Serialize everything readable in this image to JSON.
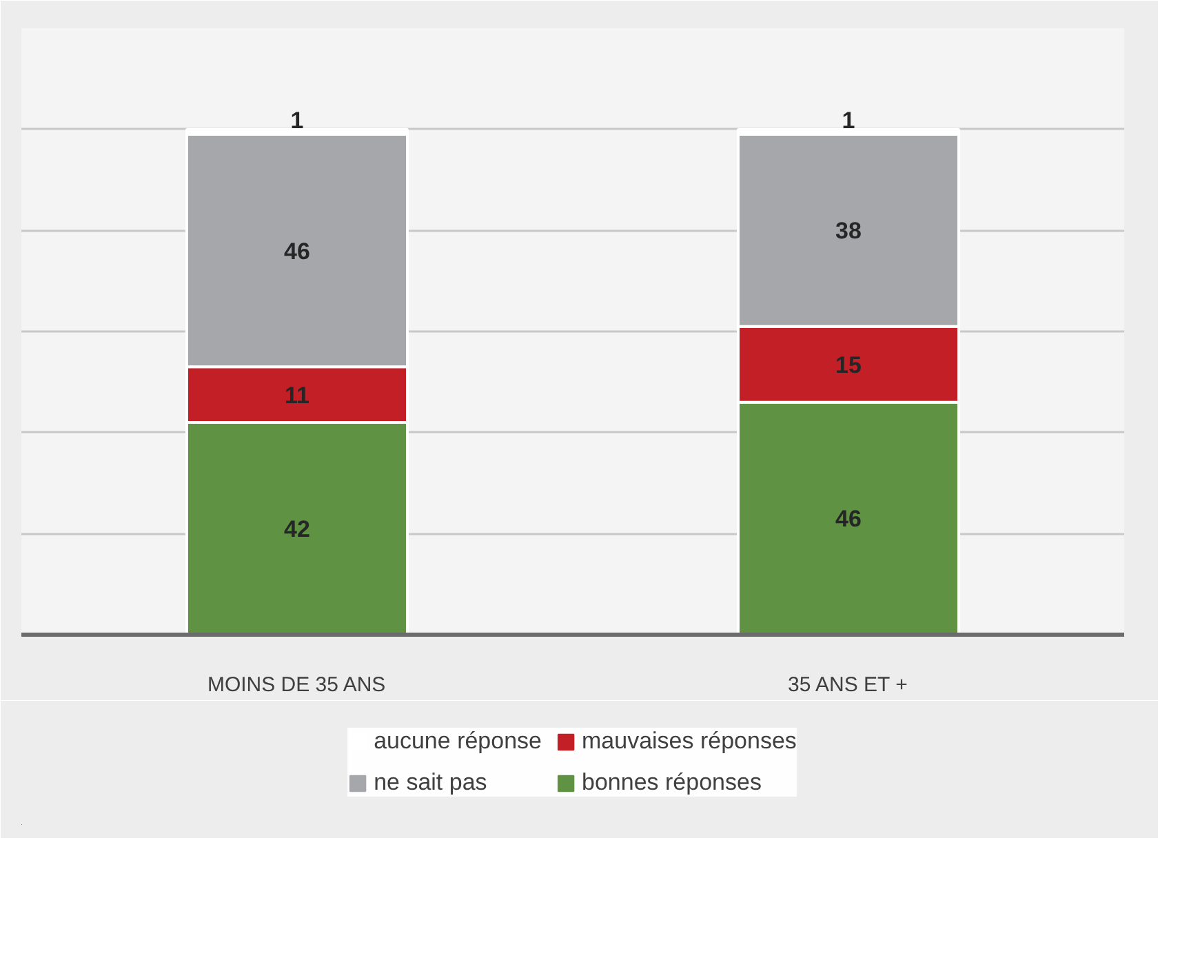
{
  "chart_data": {
    "type": "bar",
    "stacked": true,
    "categories": [
      "MOINS DE 35 ANS",
      "35 ANS ET +"
    ],
    "series": [
      {
        "name": "bonnes réponses",
        "color": "#5f9242",
        "values": [
          42,
          46
        ]
      },
      {
        "name": "mauvaises réponses",
        "color": "#c21f27",
        "values": [
          11,
          15
        ]
      },
      {
        "name": "ne sait pas",
        "color": "#a6a7aa",
        "values": [
          46,
          38
        ]
      },
      {
        "name": "aucune réponse",
        "color": "#ffffff",
        "values": [
          1,
          1
        ]
      }
    ],
    "ylim": [
      0,
      120
    ],
    "yticks": [
      {
        "value": 0,
        "label": null
      },
      {
        "value": 20,
        "label": null
      },
      {
        "value": 40,
        "label": null
      },
      {
        "value": 60,
        "label": null
      },
      {
        "value": 80,
        "label": null
      },
      {
        "value": 100,
        "label": null
      }
    ],
    "grid": "y",
    "legend": "bottom",
    "data_labels": true,
    "tick_labels": "x"
  }
}
